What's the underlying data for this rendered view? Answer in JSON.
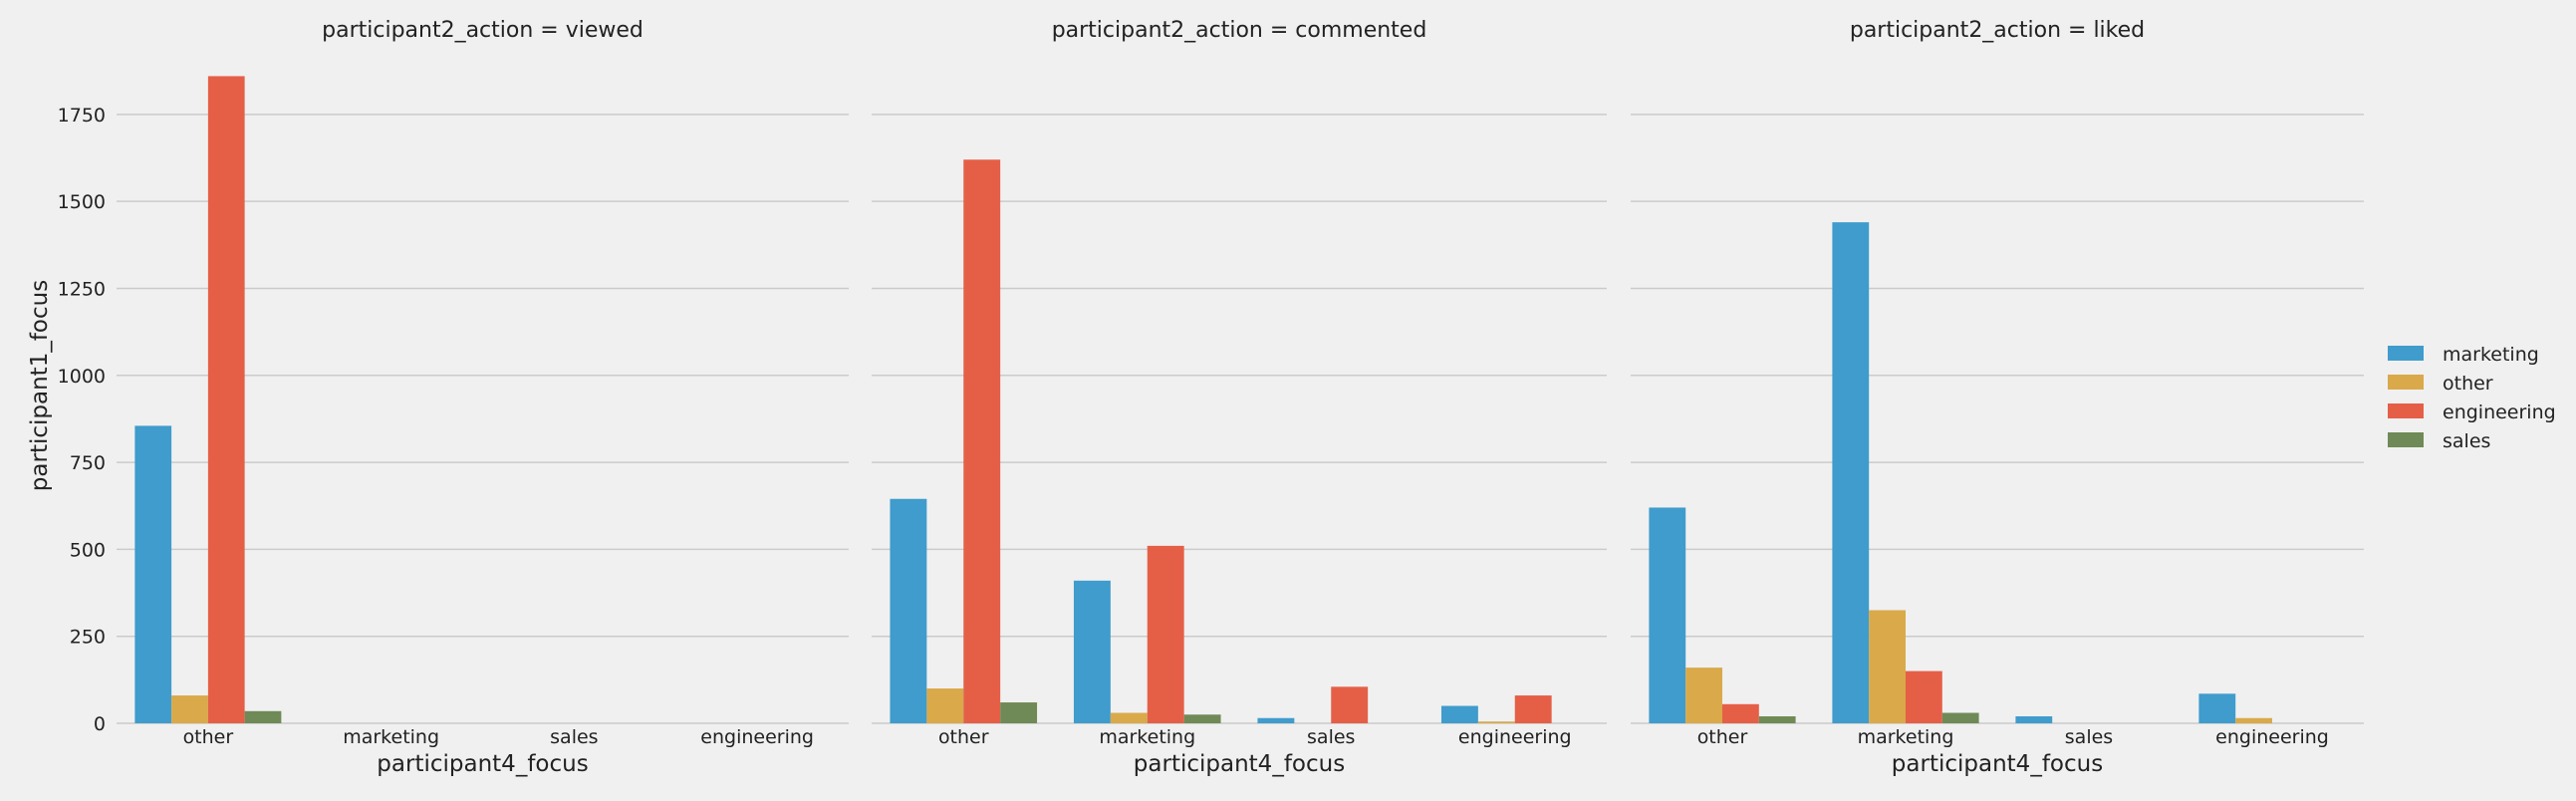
{
  "chart_data": {
    "type": "bar",
    "ylabel": "participant1_focus",
    "yticks": [
      0,
      250,
      500,
      750,
      1000,
      1250,
      1500,
      1750
    ],
    "ylim": [
      0,
      1950
    ],
    "grid": true,
    "legend_position": "right",
    "series_names": [
      "marketing",
      "other",
      "engineering",
      "sales"
    ],
    "colors": {
      "marketing": "#3f9ccc",
      "other": "#d9a94a",
      "engineering": "#e55f47",
      "sales": "#6f8a56",
      "background": "#f0f0f0",
      "grid": "#cbcbcb"
    },
    "panels": [
      {
        "title": "participant2_action = viewed",
        "xlabel": "participant4_focus",
        "categories": [
          "other",
          "marketing",
          "sales",
          "engineering"
        ],
        "series": [
          {
            "name": "marketing",
            "values": [
              855,
              0,
              0,
              0
            ]
          },
          {
            "name": "other",
            "values": [
              80,
              0,
              0,
              0
            ]
          },
          {
            "name": "engineering",
            "values": [
              1860,
              0,
              0,
              0
            ]
          },
          {
            "name": "sales",
            "values": [
              35,
              0,
              0,
              0
            ]
          }
        ]
      },
      {
        "title": "participant2_action = commented",
        "xlabel": "participant4_focus",
        "categories": [
          "other",
          "marketing",
          "sales",
          "engineering"
        ],
        "series": [
          {
            "name": "marketing",
            "values": [
              645,
              410,
              15,
              50
            ]
          },
          {
            "name": "other",
            "values": [
              100,
              30,
              0,
              5
            ]
          },
          {
            "name": "engineering",
            "values": [
              1620,
              510,
              105,
              80
            ]
          },
          {
            "name": "sales",
            "values": [
              60,
              25,
              0,
              0
            ]
          }
        ]
      },
      {
        "title": "participant2_action = liked",
        "xlabel": "participant4_focus",
        "categories": [
          "other",
          "marketing",
          "sales",
          "engineering"
        ],
        "series": [
          {
            "name": "marketing",
            "values": [
              620,
              1440,
              20,
              85
            ]
          },
          {
            "name": "other",
            "values": [
              160,
              325,
              0,
              15
            ]
          },
          {
            "name": "engineering",
            "values": [
              55,
              150,
              0,
              0
            ]
          },
          {
            "name": "sales",
            "values": [
              20,
              30,
              0,
              0
            ]
          }
        ]
      }
    ],
    "legend": {
      "entries": [
        "marketing",
        "other",
        "engineering",
        "sales"
      ]
    }
  }
}
